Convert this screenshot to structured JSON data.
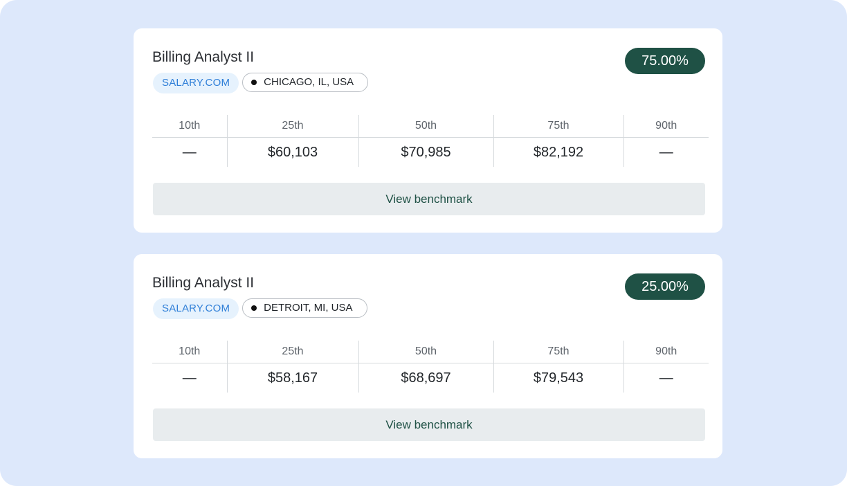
{
  "percentile_headers": [
    "10th",
    "25th",
    "50th",
    "75th",
    "90th"
  ],
  "benchmarks": [
    {
      "title": "Billing Analyst II",
      "source": "SALARY.COM",
      "location": "CHICAGO, IL, USA",
      "percent_badge": "75.00%",
      "values": [
        "—",
        "$60,103",
        "$70,985",
        "$82,192",
        "—"
      ],
      "button_label": "View benchmark"
    },
    {
      "title": "Billing Analyst II",
      "source": "SALARY.COM",
      "location": "DETROIT, MI, USA",
      "percent_badge": "25.00%",
      "values": [
        "—",
        "$58,167",
        "$68,697",
        "$79,543",
        "—"
      ],
      "button_label": "View benchmark"
    }
  ],
  "colors": {
    "background": "#dde8fb",
    "card": "#ffffff",
    "badge": "#1f5145",
    "source_tag_bg": "#e6f2fd",
    "source_tag_text": "#2f7fd8",
    "button_bg": "#e8ecee",
    "button_text": "#1f5145"
  }
}
